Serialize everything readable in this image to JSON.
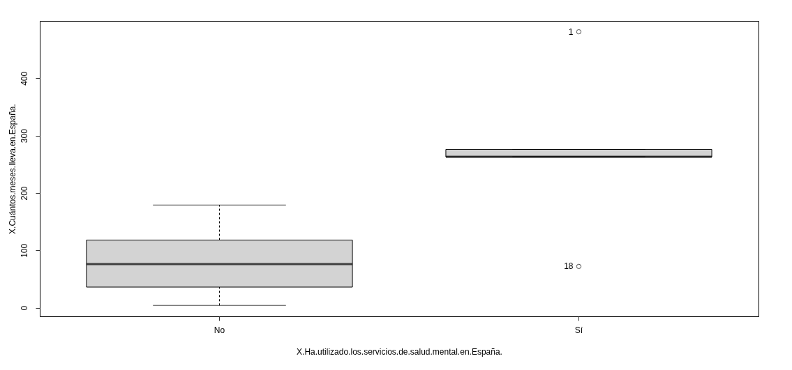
{
  "chart_data": {
    "type": "box",
    "xlabel": "X.Ha.utilizado.los.servicios.de.salud.mental.en.España.",
    "ylabel": "X.Cuántos.meses.lleva.en.España.",
    "categories": [
      "No",
      "Sí"
    ],
    "color": "#d3d3d3",
    "boxes": [
      {
        "low": 4,
        "q1": 36,
        "median": 76,
        "q3": 118,
        "high": 179
      },
      {
        "low": 263,
        "q1": 263,
        "median": 263,
        "q3": 276,
        "high": 276,
        "outliers": [
          481,
          72
        ]
      }
    ],
    "ylim": [
      -15,
      500
    ],
    "yticks": [
      0,
      100,
      200,
      300,
      400
    ],
    "grid": false,
    "annotations": [
      "1",
      "18"
    ]
  }
}
